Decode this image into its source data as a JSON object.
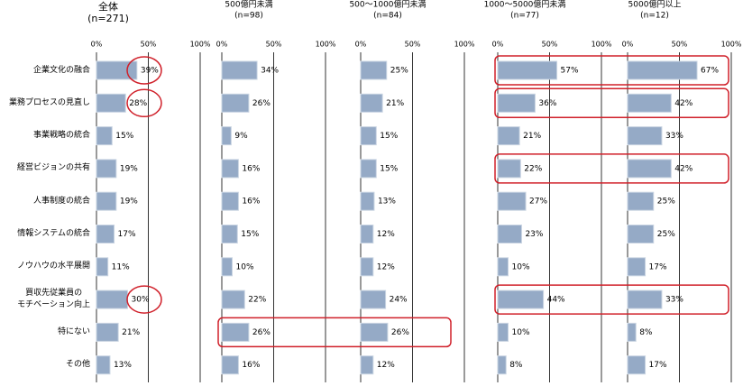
{
  "chart_data": [
    {
      "type": "bar",
      "orientation": "horizontal",
      "title": "全体",
      "subtitle": "(n=271)",
      "categories": [
        "企業文化の融合",
        "業務プロセスの見直し",
        "事業戦略の統合",
        "経営ビジョンの共有",
        "人事制度の統合",
        "情報システムの統合",
        "ノウハウの水平展開",
        "買収先従業員の\nモチベーション向上",
        "特にない",
        "その他"
      ],
      "values": [
        39,
        28,
        15,
        19,
        19,
        17,
        11,
        30,
        21,
        13
      ],
      "value_labels": [
        "39%",
        "28%",
        "15%",
        "19%",
        "19%",
        "17%",
        "11%",
        "30%",
        "21%",
        "13%"
      ],
      "color": "#95aac6",
      "xlim": [
        0,
        100
      ],
      "xticks": [
        {
          "value": 0,
          "label": "0%"
        },
        {
          "value": 50,
          "label": "50%"
        },
        {
          "value": 100,
          "label": "100%"
        }
      ]
    },
    {
      "type": "bar",
      "orientation": "horizontal",
      "title": "500億円未満",
      "subtitle": "(n=98)",
      "values": [
        34,
        26,
        9,
        16,
        16,
        15,
        10,
        22,
        26,
        16
      ],
      "value_labels": [
        "34%",
        "26%",
        "9%",
        "16%",
        "16%",
        "15%",
        "10%",
        "22%",
        "26%",
        "16%"
      ],
      "color": "#95aac6",
      "xlim": [
        0,
        100
      ],
      "xticks": [
        {
          "value": 0,
          "label": "0%"
        },
        {
          "value": 50,
          "label": "50%"
        },
        {
          "value": 100,
          "label": "100%"
        }
      ]
    },
    {
      "type": "bar",
      "orientation": "horizontal",
      "title": "500～1000億円未満",
      "subtitle": "(n=84)",
      "values": [
        25,
        21,
        15,
        15,
        13,
        12,
        12,
        24,
        26,
        12
      ],
      "value_labels": [
        "25%",
        "21%",
        "15%",
        "15%",
        "13%",
        "12%",
        "12%",
        "24%",
        "26%",
        "12%"
      ],
      "color": "#95aac6",
      "xlim": [
        0,
        100
      ],
      "xticks": [
        {
          "value": 0,
          "label": "0%"
        },
        {
          "value": 50,
          "label": "50%"
        },
        {
          "value": 100,
          "label": "100%"
        }
      ]
    },
    {
      "type": "bar",
      "orientation": "horizontal",
      "title": "1000～5000億円未満",
      "subtitle": "(n=77)",
      "values": [
        57,
        36,
        21,
        22,
        27,
        23,
        10,
        44,
        10,
        8
      ],
      "value_labels": [
        "57%",
        "36%",
        "21%",
        "22%",
        "27%",
        "23%",
        "10%",
        "44%",
        "10%",
        "8%"
      ],
      "color": "#95aac6",
      "xlim": [
        0,
        100
      ],
      "xticks": [
        {
          "value": 0,
          "label": "0%"
        },
        {
          "value": 50,
          "label": "50%"
        },
        {
          "value": 100,
          "label": "100%"
        }
      ]
    },
    {
      "type": "bar",
      "orientation": "horizontal",
      "title": "5000億円以上",
      "subtitle": "(n=12)",
      "values": [
        67,
        42,
        33,
        42,
        25,
        25,
        17,
        33,
        8,
        17
      ],
      "value_labels": [
        "67%",
        "42%",
        "33%",
        "42%",
        "25%",
        "25%",
        "17%",
        "33%",
        "8%",
        "17%"
      ],
      "color": "#95aac6",
      "xlim": [
        0,
        100
      ],
      "xticks": [
        {
          "value": 0,
          "label": "0%"
        },
        {
          "value": 50,
          "label": "50%"
        },
        {
          "value": 100,
          "label": "100%"
        }
      ]
    }
  ]
}
